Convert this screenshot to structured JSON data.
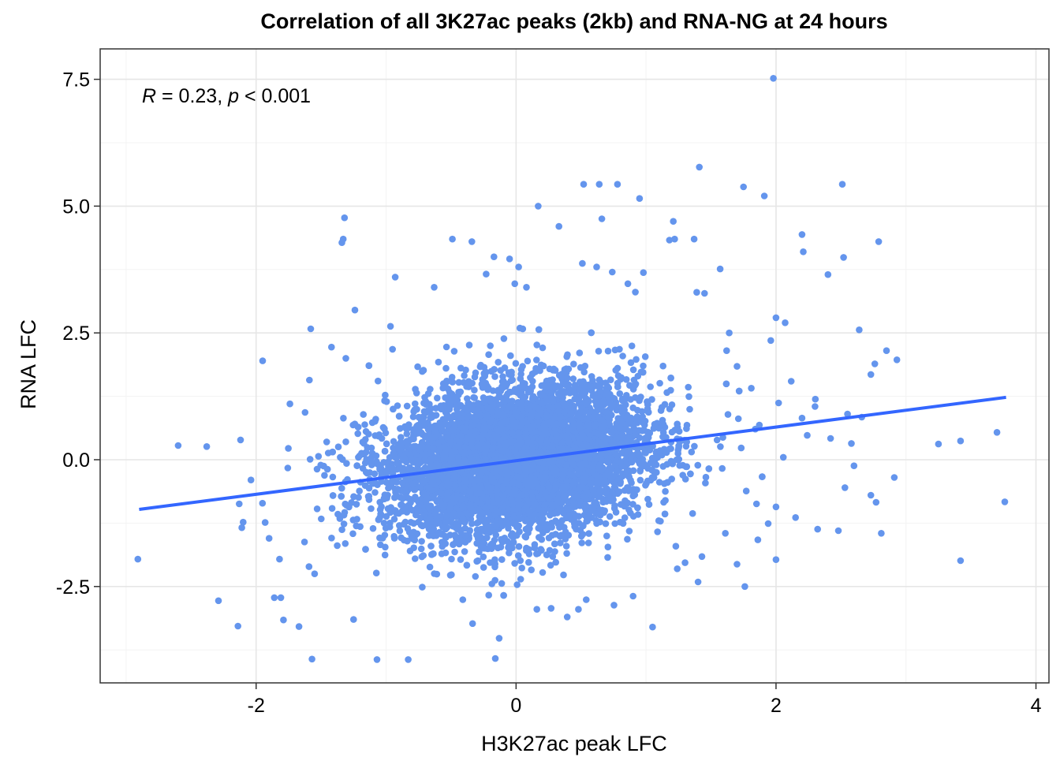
{
  "chart_data": {
    "type": "scatter",
    "title": "Correlation of all 3K27ac peaks (2kb) and RNA-NG at 24 hours",
    "xlabel": "H3K27ac peak LFC",
    "ylabel": "RNA LFC",
    "xlim": [
      -3.2,
      4.1
    ],
    "ylim": [
      -4.4,
      8.1
    ],
    "x_ticks": [
      -2,
      0,
      2,
      4
    ],
    "x_tick_labels": [
      "-2",
      "0",
      "2",
      "4"
    ],
    "y_ticks": [
      -2.5,
      0.0,
      2.5,
      5.0,
      7.5
    ],
    "y_tick_labels": [
      "-2.5",
      "0.0",
      "2.5",
      "5.0",
      "7.5"
    ],
    "grid": true,
    "annotation": {
      "R_symbol": "R",
      "R_text": " = 0.23, ",
      "p_symbol": "p",
      "p_text": " < 0.001"
    },
    "point_color": "#6495ed",
    "line_color": "#3366ff",
    "regression_line": {
      "x": [
        -2.9,
        3.77
      ],
      "y": [
        -0.98,
        1.23
      ]
    },
    "core_cloud": {
      "description_free": true,
      "x_center": 0.0,
      "y_center": 0.0,
      "x_sd": 0.48,
      "y_sd": 0.7,
      "count": 6500
    },
    "points": [
      [
        1.98,
        7.52
      ],
      [
        1.41,
        5.77
      ],
      [
        1.75,
        5.38
      ],
      [
        2.51,
        5.43
      ],
      [
        1.91,
        5.2
      ],
      [
        0.52,
        5.43
      ],
      [
        0.64,
        5.43
      ],
      [
        0.78,
        5.43
      ],
      [
        0.95,
        5.15
      ],
      [
        0.17,
        5.0
      ],
      [
        -1.32,
        4.77
      ],
      [
        -1.33,
        4.35
      ],
      [
        -1.34,
        4.28
      ],
      [
        0.33,
        4.6
      ],
      [
        0.66,
        4.75
      ],
      [
        1.21,
        4.7
      ],
      [
        1.22,
        4.35
      ],
      [
        1.18,
        4.33
      ],
      [
        1.37,
        4.35
      ],
      [
        2.2,
        4.44
      ],
      [
        2.21,
        4.1
      ],
      [
        2.52,
        3.99
      ],
      [
        2.79,
        4.3
      ],
      [
        2.4,
        3.65
      ],
      [
        1.57,
        3.76
      ],
      [
        1.39,
        3.3
      ],
      [
        1.45,
        3.28
      ],
      [
        2.0,
        2.8
      ],
      [
        2.07,
        2.7
      ],
      [
        1.96,
        2.35
      ],
      [
        2.64,
        2.56
      ],
      [
        2.85,
        2.15
      ],
      [
        2.93,
        1.97
      ],
      [
        2.76,
        1.89
      ],
      [
        2.73,
        1.68
      ],
      [
        3.76,
        -0.83
      ],
      [
        3.42,
        -1.99
      ],
      [
        3.42,
        0.37
      ],
      [
        3.25,
        0.31
      ],
      [
        3.7,
        0.54
      ],
      [
        -2.6,
        0.28
      ],
      [
        -2.38,
        0.26
      ],
      [
        -2.12,
        0.39
      ],
      [
        -2.91,
        -1.96
      ],
      [
        -2.29,
        -2.78
      ],
      [
        -2.14,
        -3.28
      ],
      [
        -1.95,
        1.95
      ],
      [
        -1.58,
        2.58
      ],
      [
        -1.57,
        -3.93
      ],
      [
        -1.07,
        -3.94
      ],
      [
        -0.83,
        -3.94
      ],
      [
        -0.16,
        -3.92
      ],
      [
        -0.13,
        -3.52
      ],
      [
        1.05,
        -3.3
      ],
      [
        1.76,
        -2.5
      ],
      [
        2.0,
        -1.97
      ],
      [
        2.48,
        -1.4
      ],
      [
        2.81,
        -1.45
      ],
      [
        2.77,
        -0.84
      ],
      [
        2.73,
        -0.7
      ],
      [
        2.91,
        -0.35
      ],
      [
        2.53,
        -0.55
      ],
      [
        2.6,
        -0.12
      ],
      [
        2.58,
        0.32
      ],
      [
        2.42,
        0.42
      ],
      [
        -1.86,
        -2.72
      ],
      [
        -1.81,
        -2.72
      ],
      [
        -1.67,
        -3.29
      ],
      [
        -1.79,
        -3.16
      ],
      [
        -1.55,
        -2.25
      ],
      [
        -1.25,
        -3.15
      ],
      [
        -0.41,
        -2.76
      ],
      [
        -0.21,
        -2.67
      ],
      [
        0.16,
        -2.95
      ],
      [
        0.27,
        -2.93
      ],
      [
        0.48,
        -2.95
      ],
      [
        0.54,
        -2.76
      ],
      [
        0.9,
        -2.69
      ],
      [
        1.4,
        -2.41
      ],
      [
        1.3,
        -2.03
      ],
      [
        -0.49,
        4.35
      ],
      [
        -0.34,
        4.3
      ],
      [
        -0.17,
        4.0
      ],
      [
        -0.05,
        3.96
      ],
      [
        0.02,
        3.8
      ],
      [
        -0.93,
        3.6
      ],
      [
        -0.63,
        3.4
      ],
      [
        -0.23,
        3.66
      ],
      [
        -0.01,
        3.47
      ],
      [
        0.08,
        3.4
      ],
      [
        0.51,
        3.87
      ],
      [
        0.62,
        3.8
      ],
      [
        0.74,
        3.7
      ],
      [
        0.86,
        3.47
      ],
      [
        0.98,
        3.69
      ],
      [
        -1.24,
        2.95
      ],
      [
        -1.42,
        2.22
      ],
      [
        -1.31,
        2.0
      ],
      [
        -1.59,
        1.57
      ],
      [
        -1.74,
        1.1
      ],
      [
        1.64,
        2.5
      ],
      [
        1.62,
        2.15
      ],
      [
        1.7,
        1.84
      ],
      [
        1.81,
        1.41
      ],
      [
        2.02,
        1.12
      ],
      [
        2.3,
        1.05
      ],
      [
        2.2,
        0.82
      ],
      [
        2.55,
        0.9
      ],
      [
        2.66,
        0.84
      ],
      [
        2.24,
        0.48
      ],
      [
        -2.11,
        -1.34
      ],
      [
        -2.04,
        -0.4
      ],
      [
        -2.13,
        -0.87
      ],
      [
        -1.9,
        -1.55
      ],
      [
        -1.82,
        -1.96
      ],
      [
        1.86,
        -1.58
      ],
      [
        1.94,
        -1.26
      ],
      [
        2.15,
        -1.14
      ],
      [
        2.32,
        -1.37
      ],
      [
        2.0,
        -0.93
      ],
      [
        1.7,
        -2.06
      ],
      [
        1.43,
        -1.91
      ],
      [
        1.24,
        -2.15
      ],
      [
        1.61,
        -1.45
      ],
      [
        1.85,
        -0.87
      ]
    ]
  }
}
